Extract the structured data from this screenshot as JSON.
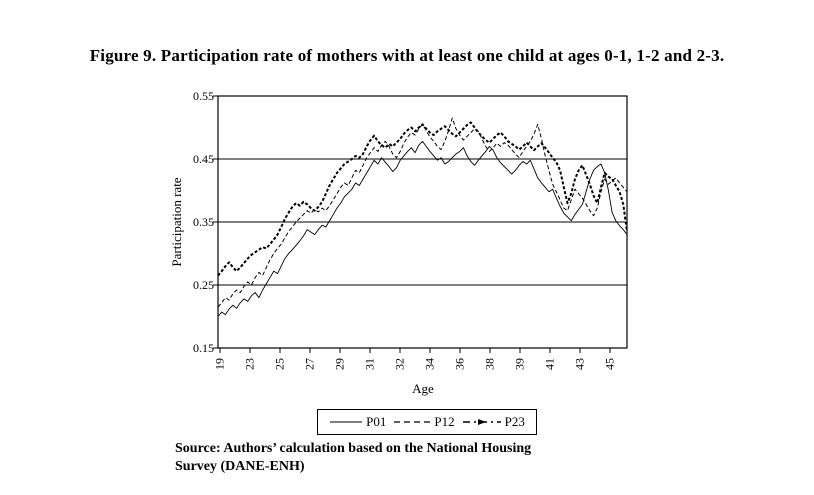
{
  "figure": {
    "title": "Figure 9. Participation rate of mothers with at least one child at ages 0-1, 1-2 and 2-3.",
    "source_line1": "Source: Authors’ calculation based on the National Housing",
    "source_line2": "Survey (DANE-ENH)"
  },
  "colors": {
    "line": "#000000",
    "background": "#ffffff",
    "text": "#000000"
  },
  "chart_data": {
    "type": "line",
    "title": "",
    "xlabel": "Age",
    "ylabel": "Participation rate",
    "ylim": [
      0.15,
      0.55
    ],
    "yticks": [
      0.55,
      0.45,
      0.35,
      0.25,
      0.15
    ],
    "ytick_labels": [
      "0.55",
      "0.45",
      "0.35",
      "0.25",
      "0.15"
    ],
    "xtick_labels": [
      "19",
      "23",
      "25",
      "27",
      "29",
      "31",
      "32",
      "34",
      "36",
      "38",
      "39",
      "41",
      "43",
      "45"
    ],
    "grid": "horizontal gridlines at 0.25, 0.35, 0.45; full black border box",
    "legend_position": "bottom-center boxed",
    "x_axis_note": "category axis of mother's age, ticks evenly spaced, labels rotated 90°",
    "n_points": 111,
    "series": [
      {
        "name": "P01",
        "style": "solid-thin",
        "values": [
          0.2,
          0.207,
          0.203,
          0.212,
          0.218,
          0.213,
          0.222,
          0.228,
          0.224,
          0.233,
          0.238,
          0.23,
          0.242,
          0.252,
          0.262,
          0.272,
          0.268,
          0.28,
          0.292,
          0.3,
          0.306,
          0.313,
          0.32,
          0.328,
          0.338,
          0.334,
          0.33,
          0.338,
          0.345,
          0.342,
          0.352,
          0.362,
          0.372,
          0.38,
          0.39,
          0.396,
          0.402,
          0.412,
          0.408,
          0.418,
          0.428,
          0.438,
          0.448,
          0.442,
          0.452,
          0.445,
          0.438,
          0.43,
          0.436,
          0.448,
          0.455,
          0.462,
          0.468,
          0.46,
          0.472,
          0.478,
          0.47,
          0.462,
          0.455,
          0.448,
          0.452,
          0.442,
          0.446,
          0.452,
          0.458,
          0.462,
          0.468,
          0.455,
          0.446,
          0.44,
          0.448,
          0.455,
          0.462,
          0.47,
          0.464,
          0.452,
          0.444,
          0.438,
          0.432,
          0.426,
          0.432,
          0.44,
          0.446,
          0.442,
          0.448,
          0.434,
          0.42,
          0.412,
          0.405,
          0.398,
          0.402,
          0.388,
          0.375,
          0.364,
          0.358,
          0.352,
          0.362,
          0.37,
          0.378,
          0.398,
          0.418,
          0.432,
          0.438,
          0.442,
          0.428,
          0.4,
          0.365,
          0.352,
          0.344,
          0.338,
          0.33
        ]
      },
      {
        "name": "P12",
        "style": "dashed",
        "values": [
          0.215,
          0.222,
          0.23,
          0.226,
          0.236,
          0.242,
          0.238,
          0.248,
          0.255,
          0.25,
          0.262,
          0.27,
          0.265,
          0.278,
          0.29,
          0.3,
          0.308,
          0.315,
          0.325,
          0.335,
          0.342,
          0.35,
          0.356,
          0.362,
          0.368,
          0.364,
          0.37,
          0.366,
          0.372,
          0.368,
          0.376,
          0.385,
          0.395,
          0.405,
          0.412,
          0.408,
          0.42,
          0.432,
          0.428,
          0.44,
          0.452,
          0.46,
          0.468,
          0.462,
          0.472,
          0.478,
          0.47,
          0.458,
          0.452,
          0.462,
          0.475,
          0.485,
          0.492,
          0.488,
          0.498,
          0.505,
          0.495,
          0.485,
          0.478,
          0.47,
          0.465,
          0.478,
          0.495,
          0.515,
          0.498,
          0.488,
          0.48,
          0.486,
          0.492,
          0.498,
          0.494,
          0.482,
          0.47,
          0.462,
          0.468,
          0.475,
          0.47,
          0.476,
          0.472,
          0.465,
          0.458,
          0.452,
          0.462,
          0.47,
          0.478,
          0.49,
          0.505,
          0.482,
          0.455,
          0.432,
          0.41,
          0.398,
          0.385,
          0.372,
          0.368,
          0.385,
          0.402,
          0.395,
          0.388,
          0.378,
          0.368,
          0.36,
          0.372,
          0.398,
          0.418,
          0.41,
          0.415,
          0.42,
          0.412,
          0.405,
          0.398
        ]
      },
      {
        "name": "P23",
        "style": "bold-dash-dot",
        "values": [
          0.265,
          0.272,
          0.28,
          0.286,
          0.278,
          0.272,
          0.278,
          0.285,
          0.292,
          0.298,
          0.302,
          0.306,
          0.31,
          0.308,
          0.315,
          0.322,
          0.33,
          0.342,
          0.355,
          0.365,
          0.374,
          0.38,
          0.376,
          0.382,
          0.378,
          0.372,
          0.368,
          0.374,
          0.382,
          0.395,
          0.408,
          0.418,
          0.428,
          0.435,
          0.442,
          0.446,
          0.45,
          0.455,
          0.452,
          0.458,
          0.47,
          0.48,
          0.487,
          0.478,
          0.472,
          0.468,
          0.474,
          0.47,
          0.476,
          0.482,
          0.49,
          0.496,
          0.5,
          0.494,
          0.5,
          0.505,
          0.498,
          0.492,
          0.488,
          0.494,
          0.498,
          0.502,
          0.496,
          0.49,
          0.486,
          0.492,
          0.498,
          0.504,
          0.508,
          0.5,
          0.492,
          0.486,
          0.48,
          0.476,
          0.482,
          0.488,
          0.492,
          0.486,
          0.478,
          0.474,
          0.47,
          0.465,
          0.47,
          0.476,
          0.47,
          0.464,
          0.47,
          0.475,
          0.468,
          0.46,
          0.452,
          0.445,
          0.432,
          0.405,
          0.38,
          0.395,
          0.418,
          0.432,
          0.44,
          0.425,
          0.41,
          0.392,
          0.38,
          0.405,
          0.428,
          0.422,
          0.418,
          0.408,
          0.398,
          0.378,
          0.335
        ]
      }
    ]
  }
}
